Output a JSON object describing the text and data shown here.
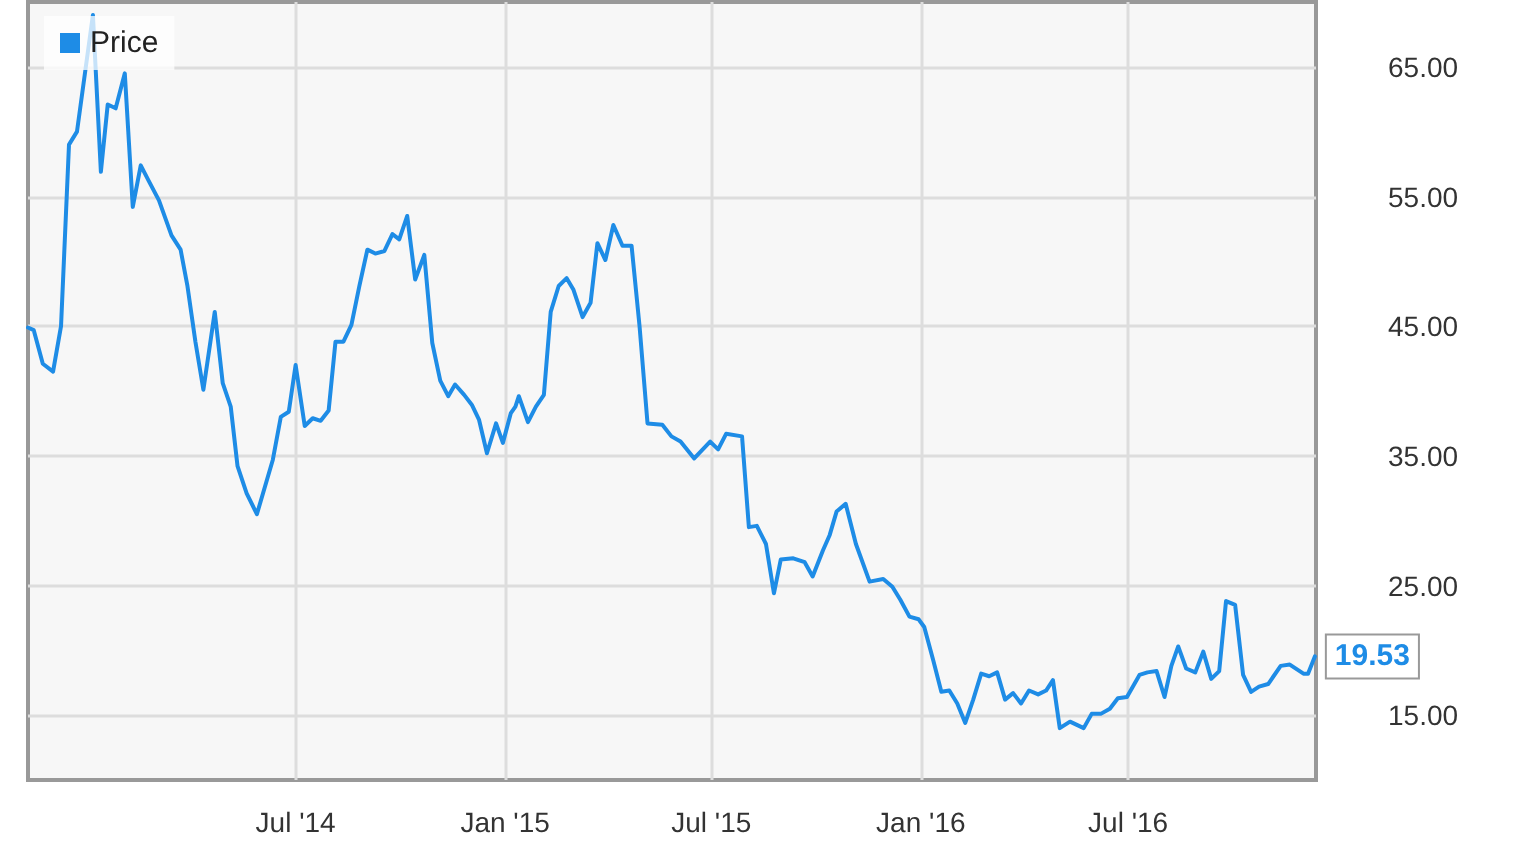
{
  "chart_data": {
    "type": "line",
    "legend": "top left",
    "grid": true,
    "line_style": "solid",
    "xlim": [
      "2013-11-08",
      "2016-12-13"
    ],
    "xticks": [
      {
        "value": "2014-07-01",
        "label": "Jul '14"
      },
      {
        "value": "2015-01-01",
        "label": "Jan '15"
      },
      {
        "value": "2015-07-01",
        "label": "Jul '15"
      },
      {
        "value": "2016-01-01",
        "label": "Jan '16"
      },
      {
        "value": "2016-07-01",
        "label": "Jul '16"
      }
    ],
    "ylim": [
      10,
      70
    ],
    "yticks": [
      {
        "value": 15,
        "label": "15.00"
      },
      {
        "value": 25,
        "label": "25.00"
      },
      {
        "value": 35,
        "label": "35.00"
      },
      {
        "value": 45,
        "label": "45.00"
      },
      {
        "value": 55,
        "label": "55.00"
      },
      {
        "value": 65,
        "label": "65.00"
      }
    ],
    "x": [
      "2013-11-08",
      "2013-11-13",
      "2013-11-21",
      "2013-11-30",
      "2013-12-07",
      "2013-12-14",
      "2013-12-21",
      "2014-01-04",
      "2014-01-11",
      "2014-01-17",
      "2014-01-24",
      "2014-02-01",
      "2014-02-08",
      "2014-02-15",
      "2014-02-22",
      "2014-03-03",
      "2014-03-14",
      "2014-03-22",
      "2014-03-28",
      "2014-04-04",
      "2014-04-11",
      "2014-04-21",
      "2014-04-28",
      "2014-05-05",
      "2014-05-11",
      "2014-05-19",
      "2014-05-28",
      "2014-06-11",
      "2014-06-18",
      "2014-06-25",
      "2014-07-01",
      "2014-07-09",
      "2014-07-16",
      "2014-07-23",
      "2014-07-30",
      "2014-08-05",
      "2014-08-12",
      "2014-08-19",
      "2014-08-26",
      "2014-09-02",
      "2014-09-09",
      "2014-09-17",
      "2014-09-24",
      "2014-09-30",
      "2014-10-07",
      "2014-10-14",
      "2014-10-22",
      "2014-10-29",
      "2014-11-05",
      "2014-11-12",
      "2014-11-18",
      "2014-11-26",
      "2014-12-03",
      "2014-12-09",
      "2014-12-16",
      "2014-12-24",
      "2014-12-30",
      "2015-01-06",
      "2015-01-10",
      "2015-01-13",
      "2015-01-21",
      "2015-01-28",
      "2015-02-04",
      "2015-02-10",
      "2015-02-17",
      "2015-02-24",
      "2015-03-02",
      "2015-03-10",
      "2015-03-17",
      "2015-03-23",
      "2015-03-30",
      "2015-04-06",
      "2015-04-14",
      "2015-04-22",
      "2015-04-29",
      "2015-05-06",
      "2015-05-19",
      "2015-05-27",
      "2015-06-04",
      "2015-06-16",
      "2015-06-30",
      "2015-07-07",
      "2015-07-14",
      "2015-07-28",
      "2015-08-03",
      "2015-08-10",
      "2015-08-18",
      "2015-08-25",
      "2015-08-31",
      "2015-09-11",
      "2015-09-21",
      "2015-09-28",
      "2015-10-07",
      "2015-10-13",
      "2015-10-19",
      "2015-10-27",
      "2015-11-05",
      "2015-11-17",
      "2015-11-29",
      "2015-12-07",
      "2015-12-14",
      "2015-12-22",
      "2015-12-30",
      "2016-01-04",
      "2016-01-12",
      "2016-01-19",
      "2016-01-26",
      "2016-02-02",
      "2016-02-09",
      "2016-02-16",
      "2016-02-23",
      "2016-03-01",
      "2016-03-08",
      "2016-03-15",
      "2016-03-22",
      "2016-03-29",
      "2016-04-05",
      "2016-04-13",
      "2016-04-20",
      "2016-04-26",
      "2016-05-02",
      "2016-05-11",
      "2016-05-23",
      "2016-05-30",
      "2016-06-07",
      "2016-06-15",
      "2016-06-22",
      "2016-06-30",
      "2016-07-11",
      "2016-07-18",
      "2016-07-26",
      "2016-08-02",
      "2016-08-08",
      "2016-08-14",
      "2016-08-21",
      "2016-08-29",
      "2016-09-05",
      "2016-09-12",
      "2016-09-19",
      "2016-09-25",
      "2016-10-03",
      "2016-10-10",
      "2016-10-17",
      "2016-10-24",
      "2016-11-01",
      "2016-11-12",
      "2016-11-20",
      "2016-12-02",
      "2016-12-06",
      "2016-12-12"
    ],
    "series": [
      {
        "name": "Price",
        "color": "#1e8ce6",
        "values": [
          44.9,
          44.7,
          42.1,
          41.5,
          45.0,
          59.0,
          60.0,
          69.0,
          56.9,
          62.1,
          61.8,
          64.5,
          54.2,
          57.4,
          56.2,
          54.7,
          52.0,
          50.9,
          48.1,
          43.8,
          40.1,
          46.1,
          40.6,
          38.8,
          34.2,
          32.1,
          30.5,
          34.7,
          38.0,
          38.4,
          42.0,
          37.3,
          37.9,
          37.7,
          38.5,
          43.8,
          43.8,
          45.1,
          48.1,
          50.9,
          50.6,
          50.8,
          52.1,
          51.7,
          53.5,
          48.6,
          50.5,
          43.7,
          40.8,
          39.6,
          40.5,
          39.7,
          38.9,
          37.8,
          35.2,
          37.5,
          36.0,
          38.3,
          38.8,
          39.6,
          37.6,
          38.8,
          39.7,
          46.1,
          48.1,
          48.7,
          47.8,
          45.7,
          46.8,
          51.4,
          50.1,
          52.8,
          51.2,
          51.2,
          45.0,
          37.5,
          37.4,
          36.5,
          36.1,
          34.8,
          36.1,
          35.5,
          36.7,
          36.5,
          29.5,
          29.6,
          28.2,
          24.4,
          27.0,
          27.1,
          26.8,
          25.7,
          27.7,
          28.9,
          30.7,
          31.3,
          28.2,
          25.3,
          25.5,
          24.9,
          23.9,
          22.6,
          22.4,
          21.8,
          19.2,
          16.8,
          16.9,
          15.9,
          14.4,
          16.2,
          18.2,
          18.0,
          18.3,
          16.2,
          16.7,
          15.9,
          16.9,
          16.6,
          16.9,
          17.7,
          14.0,
          14.5,
          14.0,
          15.1,
          15.1,
          15.5,
          16.3,
          16.4,
          18.1,
          18.3,
          18.4,
          16.4,
          18.8,
          20.3,
          18.6,
          18.3,
          19.9,
          17.8,
          18.4,
          23.8,
          23.5,
          18.1,
          16.8,
          17.2,
          17.4,
          18.8,
          18.9,
          18.2,
          18.2,
          19.53
        ],
        "value_labels": [
          null,
          null,
          null,
          null,
          null,
          null,
          null,
          null,
          null,
          null,
          null,
          null,
          null,
          null,
          null,
          null,
          null,
          null,
          null,
          null,
          null,
          null,
          null,
          null,
          null,
          null,
          null,
          null,
          null,
          null,
          null,
          null,
          null,
          null,
          null,
          null,
          null,
          null,
          null,
          null,
          null,
          null,
          null,
          null,
          null,
          null,
          null,
          null,
          null,
          null,
          null,
          null,
          null,
          null,
          null,
          null,
          null,
          null,
          null,
          null,
          null,
          null,
          null,
          null,
          null,
          null,
          null,
          null,
          null,
          null,
          null,
          null,
          null,
          null,
          null,
          null,
          null,
          null,
          null,
          null,
          null,
          null,
          null,
          null,
          null,
          null,
          null,
          null,
          null,
          null,
          null,
          null,
          null,
          null,
          null,
          null,
          null,
          null,
          null,
          null,
          null,
          null,
          null,
          null,
          null,
          null,
          null,
          null,
          null,
          null,
          null,
          null,
          null,
          null,
          null,
          null,
          null,
          null,
          null,
          null,
          null,
          null,
          null,
          null,
          null,
          null,
          null,
          null,
          null,
          null,
          null,
          null,
          null,
          null,
          null,
          null,
          null,
          null,
          null,
          null,
          null,
          null,
          null,
          null,
          null,
          null,
          null,
          null,
          null,
          "19.53"
        ]
      }
    ]
  }
}
